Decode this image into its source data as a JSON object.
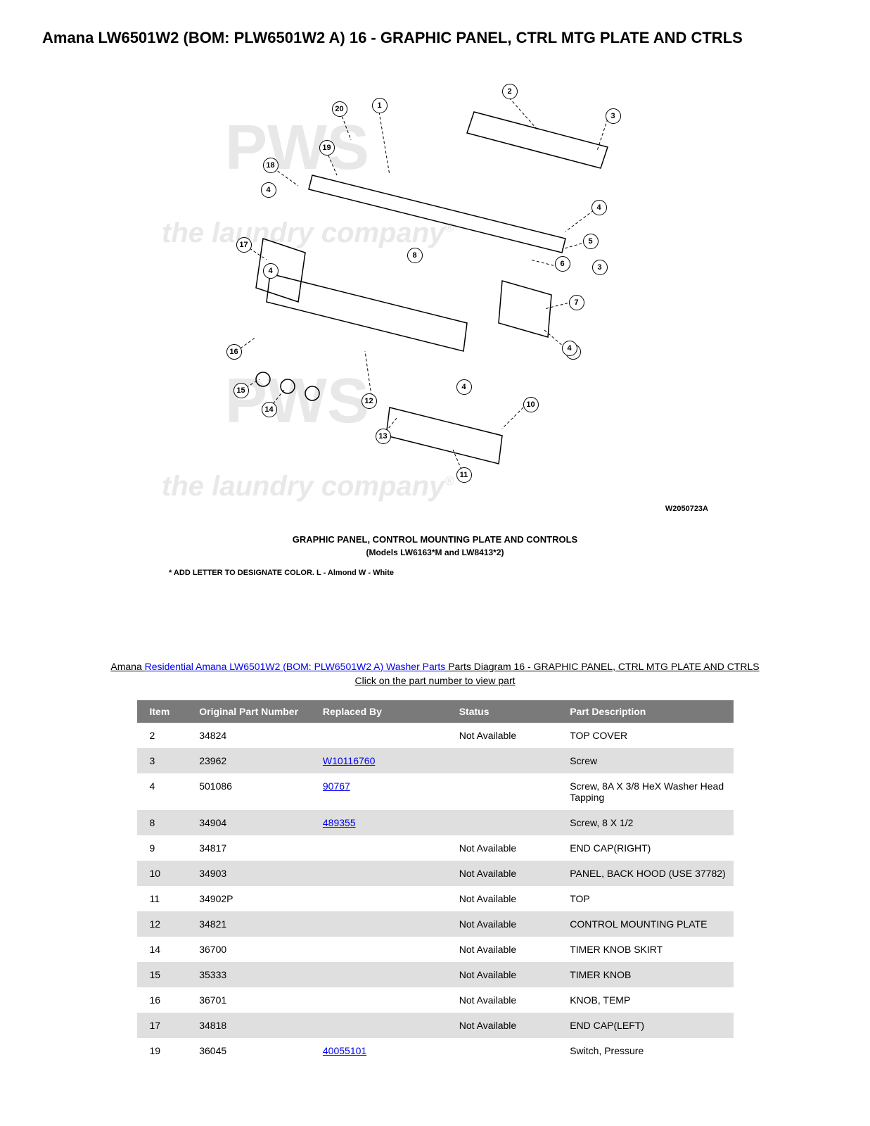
{
  "title": "Amana LW6501W2 (BOM: PLW6501W2 A) 16 - GRAPHIC PANEL, CTRL MTG PLATE AND CTRLS",
  "diagram": {
    "caption": "GRAPHIC PANEL, CONTROL MOUNTING PLATE AND CONTROLS",
    "subcaption": "(Models LW6163*M and LW8413*2)",
    "note": "* ADD LETTER TO DESIGNATE COLOR. L - Almond W - White",
    "ref": "W2050723A",
    "callouts": [
      "1",
      "2",
      "3",
      "3",
      "3",
      "4",
      "4",
      "4",
      "4",
      "4",
      "5",
      "6",
      "7",
      "8",
      "9",
      "10",
      "11",
      "12",
      "13",
      "14",
      "15",
      "16",
      "17",
      "18",
      "19",
      "20"
    ]
  },
  "breadcrumb": {
    "prefix": "Amana ",
    "link_text": "Residential Amana LW6501W2 (BOM: PLW6501W2 A) Washer Parts",
    "suffix": " Parts Diagram 16 - GRAPHIC PANEL, CTRL MTG PLATE AND CTRLS"
  },
  "instruction": "Click on the part number to view part",
  "table": {
    "columns": [
      "Item",
      "Original Part Number",
      "Replaced By",
      "Status",
      "Part Description"
    ],
    "rows": [
      {
        "item": "2",
        "orig": "34824",
        "repl": "",
        "status": "Not Available",
        "desc": "TOP COVER"
      },
      {
        "item": "3",
        "orig": "23962",
        "repl": "W10116760",
        "status": "",
        "desc": "Screw"
      },
      {
        "item": "4",
        "orig": "501086",
        "repl": "90767",
        "status": "",
        "desc": "Screw, 8A X 3/8 HeX Washer Head Tapping"
      },
      {
        "item": "8",
        "orig": "34904",
        "repl": "489355",
        "status": "",
        "desc": "Screw, 8 X 1/2"
      },
      {
        "item": "9",
        "orig": "34817",
        "repl": "",
        "status": "Not Available",
        "desc": "END CAP(RIGHT)"
      },
      {
        "item": "10",
        "orig": "34903",
        "repl": "",
        "status": "Not Available",
        "desc": "PANEL, BACK HOOD (USE 37782)"
      },
      {
        "item": "11",
        "orig": "34902P",
        "repl": "",
        "status": "Not Available",
        "desc": "TOP"
      },
      {
        "item": "12",
        "orig": "34821",
        "repl": "",
        "status": "Not Available",
        "desc": "CONTROL MOUNTING PLATE"
      },
      {
        "item": "14",
        "orig": "36700",
        "repl": "",
        "status": "Not Available",
        "desc": "TIMER KNOB SKIRT"
      },
      {
        "item": "15",
        "orig": "35333",
        "repl": "",
        "status": "Not Available",
        "desc": "TIMER KNOB"
      },
      {
        "item": "16",
        "orig": "36701",
        "repl": "",
        "status": "Not Available",
        "desc": "KNOB, TEMP"
      },
      {
        "item": "17",
        "orig": "34818",
        "repl": "",
        "status": "Not Available",
        "desc": "END CAP(LEFT)"
      },
      {
        "item": "19",
        "orig": "36045",
        "repl": "40055101",
        "status": "",
        "desc": "Switch, Pressure"
      }
    ]
  },
  "colors": {
    "header_bg": "#7a7a7a",
    "header_fg": "#ffffff",
    "row_even_bg": "#dfdfdf",
    "row_odd_bg": "#ffffff",
    "link": "#0000ee",
    "watermark": "#e8e8e8"
  }
}
